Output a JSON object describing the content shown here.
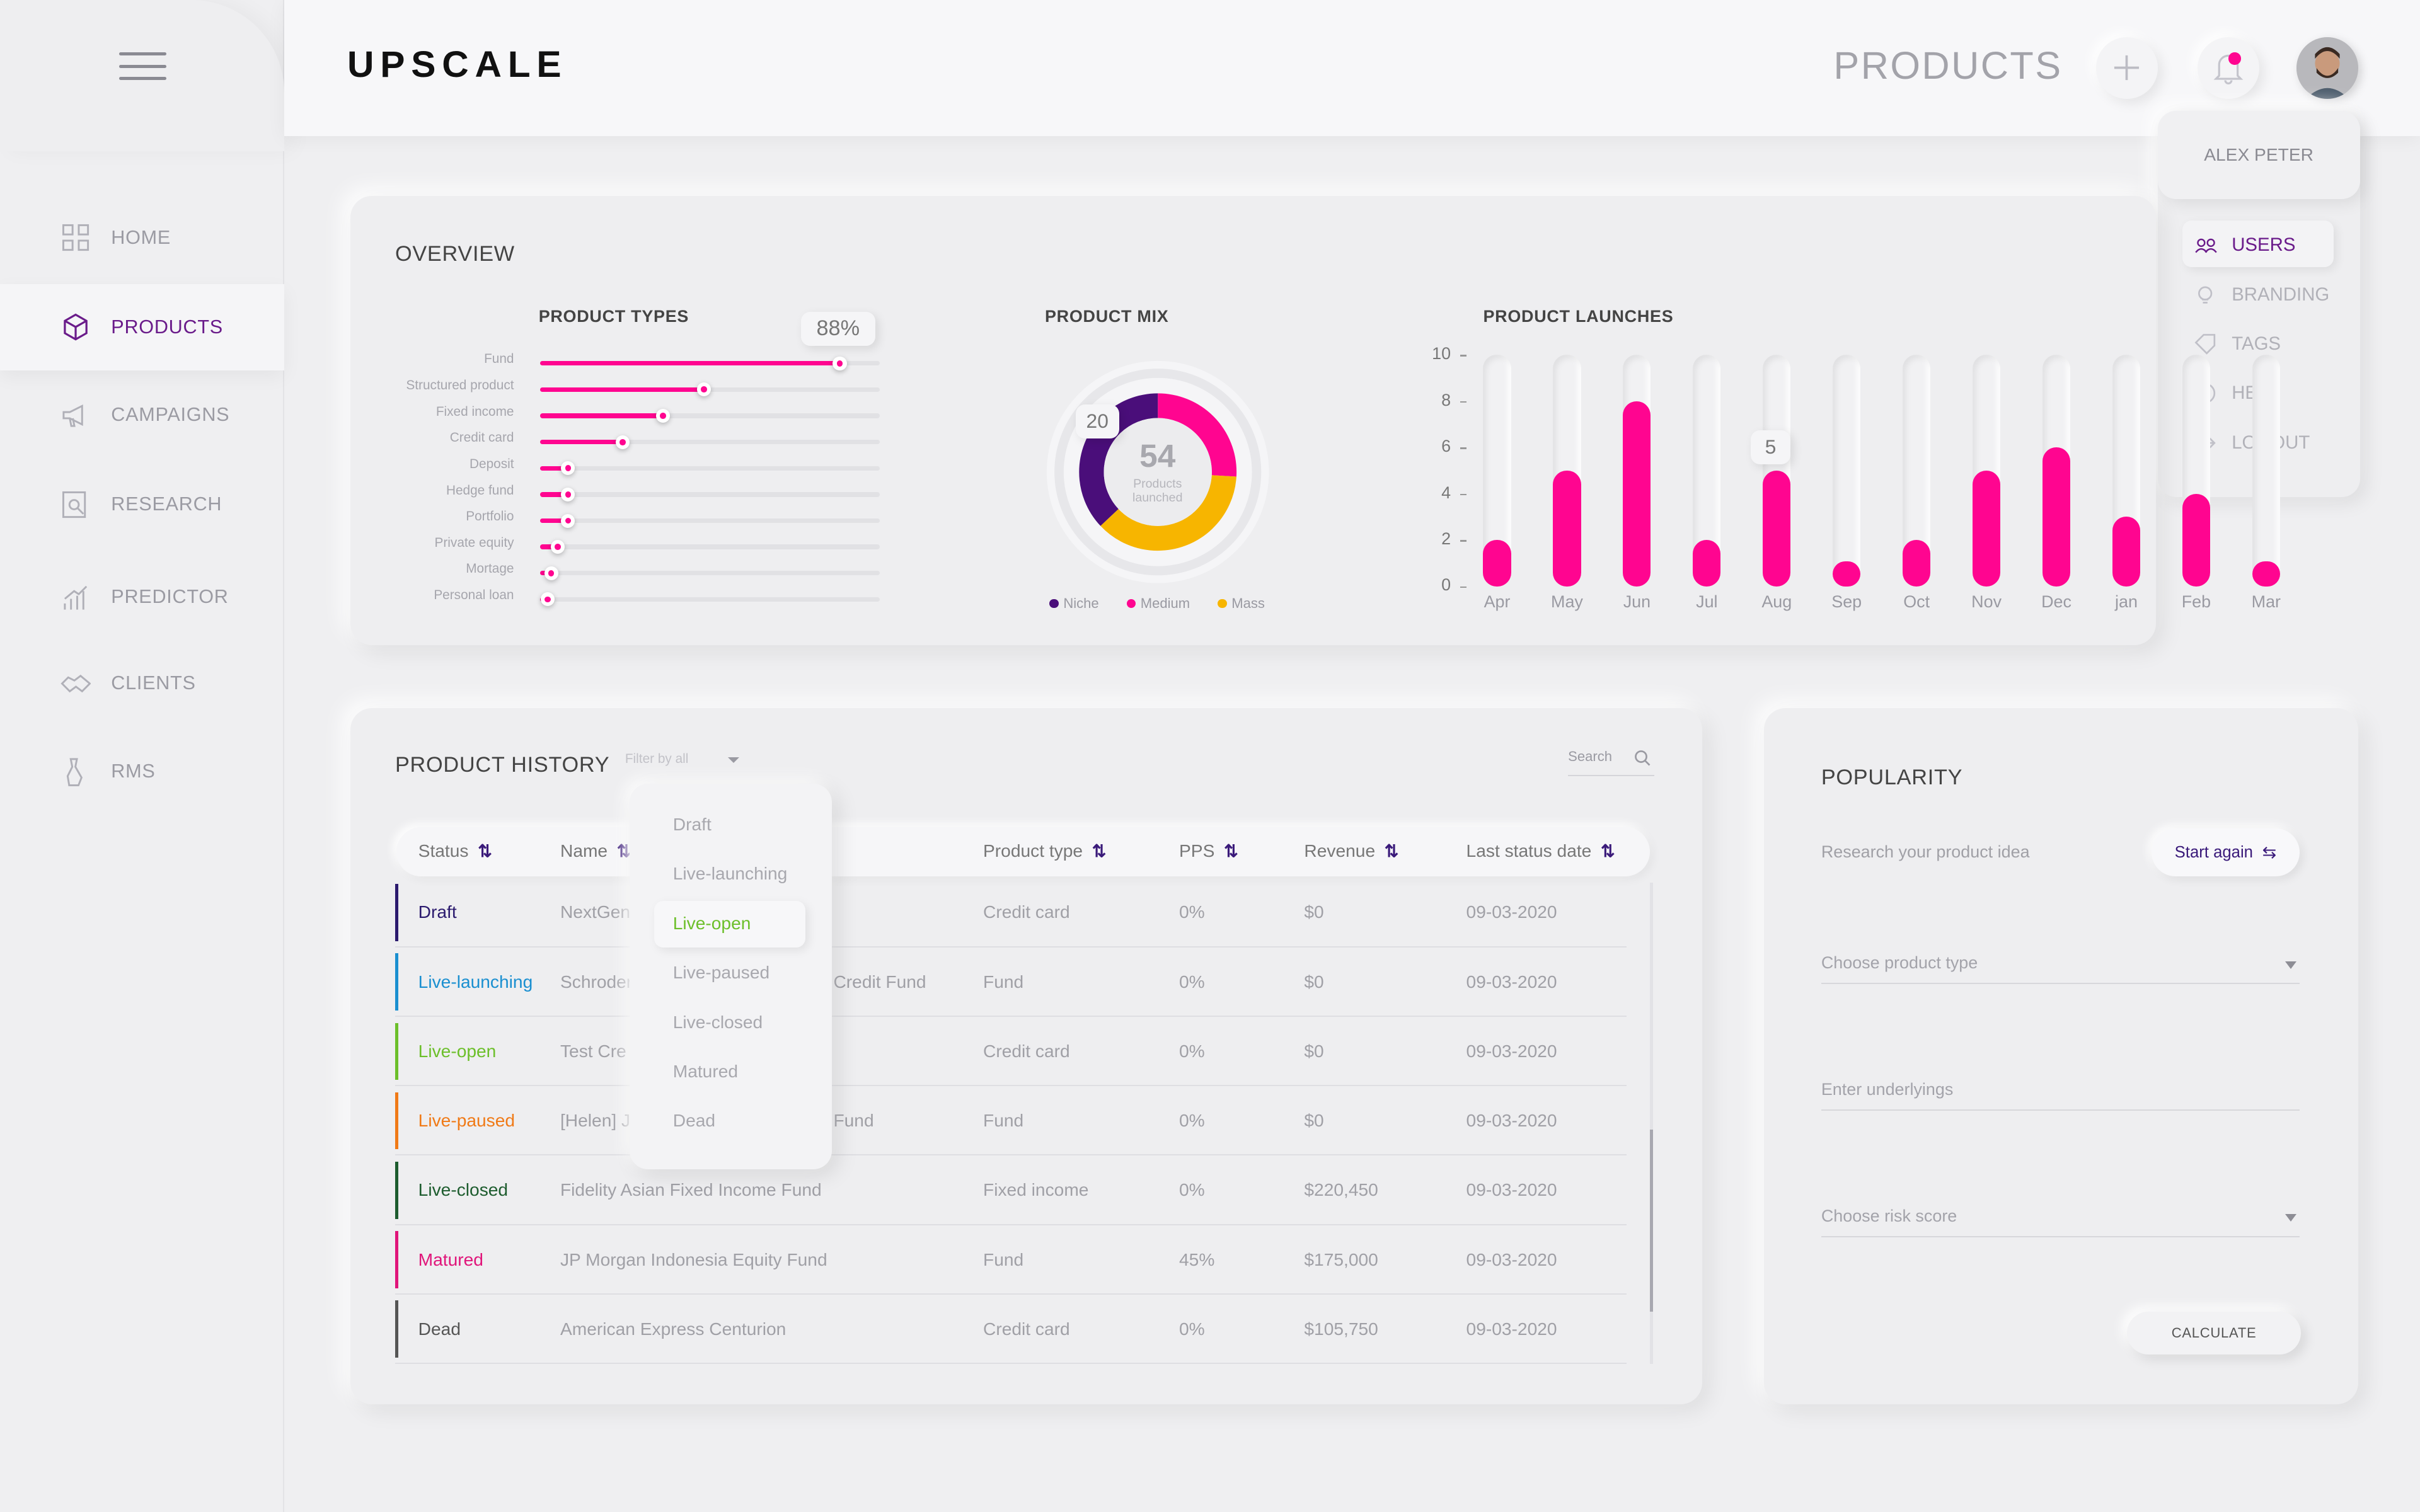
{
  "brand": {
    "logo": "UPSCALE",
    "accent": "#ff0590",
    "purple": "#6a1b8a"
  },
  "header": {
    "title": "PRODUCTS"
  },
  "nav": [
    {
      "label": "HOME",
      "icon": "home-grid-icon"
    },
    {
      "label": "PRODUCTS",
      "icon": "cube-icon"
    },
    {
      "label": "CAMPAIGNS",
      "icon": "megaphone-icon"
    },
    {
      "label": "RESEARCH",
      "icon": "research-icon"
    },
    {
      "label": "PREDICTOR",
      "icon": "chart-icon"
    },
    {
      "label": "CLIENTS",
      "icon": "handshake-icon"
    },
    {
      "label": "RMS",
      "icon": "rms-icon"
    }
  ],
  "user_menu": {
    "name": "ALEX PETER",
    "items": [
      {
        "label": "USERS",
        "icon": "users-icon"
      },
      {
        "label": "BRANDING",
        "icon": "bulb-icon"
      },
      {
        "label": "TAGS",
        "icon": "tag-icon"
      },
      {
        "label": "HELP",
        "icon": "help-icon"
      },
      {
        "label": "LOGOUT",
        "icon": "logout-icon"
      }
    ]
  },
  "overview": {
    "title": "OVERVIEW",
    "product_types": {
      "title": "PRODUCT TYPES",
      "tooltip": "88%",
      "items": [
        {
          "label": "Fund",
          "value": 88
        },
        {
          "label": "Structured product",
          "value": 48
        },
        {
          "label": "Fixed income",
          "value": 36
        },
        {
          "label": "Credit card",
          "value": 24
        },
        {
          "label": "Deposit",
          "value": 8
        },
        {
          "label": "Hedge fund",
          "value": 8
        },
        {
          "label": "Portfolio",
          "value": 8
        },
        {
          "label": "Private equity",
          "value": 5
        },
        {
          "label": "Mortage",
          "value": 3
        },
        {
          "label": "Personal loan",
          "value": 2
        }
      ]
    },
    "product_mix": {
      "title": "PRODUCT MIX",
      "center_value": "54",
      "center_label": "Products launched",
      "tooltip": "20",
      "legend": [
        {
          "label": "Niche",
          "color": "#4a0e7a",
          "value": 20
        },
        {
          "label": "Medium",
          "color": "#ff0590",
          "value": 14
        },
        {
          "label": "Mass",
          "color": "#f7b500",
          "value": 20
        }
      ]
    },
    "product_launches": {
      "title": "PRODUCT LAUNCHES",
      "tooltip": "5"
    }
  },
  "chart_data": {
    "type": "bar",
    "title": "PRODUCT LAUNCHES",
    "categories": [
      "Apr",
      "May",
      "Jun",
      "Jul",
      "Aug",
      "Sep",
      "Oct",
      "Nov",
      "Dec",
      "jan",
      "Feb",
      "Mar"
    ],
    "values": [
      2,
      5,
      8,
      2,
      5,
      1,
      2,
      5,
      6,
      3,
      4,
      1
    ],
    "ylim": [
      0,
      10
    ],
    "yticks": [
      "10",
      "8",
      "6",
      "4",
      "2",
      "0"
    ]
  },
  "history": {
    "title": "PRODUCT HISTORY",
    "filter_placeholder": "Filter by all",
    "search_placeholder": "Search",
    "columns": [
      "Status",
      "Name",
      "Product type",
      "PPS",
      "Revenue",
      "Last status date"
    ],
    "rows": [
      {
        "status": "Draft",
        "color": "#2b1a6e",
        "name": "NextGen",
        "type": "Credit card",
        "pps": "0%",
        "revenue": "$0",
        "date": "09-03-2020"
      },
      {
        "status": "Live-launching",
        "color": "#1a8fd0",
        "name": "Schroder",
        "name_tail": "Credit Fund",
        "type": "Fund",
        "pps": "0%",
        "revenue": "$0",
        "date": "09-03-2020"
      },
      {
        "status": "Live-open",
        "color": "#6cbf2a",
        "name": "Test Cre",
        "type": "Credit card",
        "pps": "0%",
        "revenue": "$0",
        "date": "09-03-2020"
      },
      {
        "status": "Live-paused",
        "color": "#f07a17",
        "name": "[Helen] Ji",
        "name_tail": "Fund",
        "type": "Fund",
        "pps": "0%",
        "revenue": "$0",
        "date": "09-03-2020"
      },
      {
        "status": "Live-closed",
        "color": "#1d5c2e",
        "name": "Fidelity Asian Fixed Income Fund",
        "type": "Fixed income",
        "pps": "0%",
        "revenue": "$220,450",
        "date": "09-03-2020"
      },
      {
        "status": "Matured",
        "color": "#e0157a",
        "name": "JP Morgan Indonesia Equity Fund",
        "type": "Fund",
        "pps": "45%",
        "revenue": "$175,000",
        "date": "09-03-2020"
      },
      {
        "status": "Dead",
        "color": "#555555",
        "name": "American Express Centurion",
        "type": "Credit card",
        "pps": "0%",
        "revenue": "$105,750",
        "date": "09-03-2020"
      }
    ],
    "dropdown": [
      "Draft",
      "Live-launching",
      "Live-open",
      "Live-paused",
      "Live-closed",
      "Matured",
      "Dead"
    ]
  },
  "popularity": {
    "title": "POPULARITY",
    "subtitle": "Research your product idea",
    "start_again": "Start again",
    "product_type_placeholder": "Choose product type",
    "underlyings_placeholder": "Enter underlyings",
    "risk_placeholder": "Choose risk score",
    "calculate": "CALCULATE"
  }
}
